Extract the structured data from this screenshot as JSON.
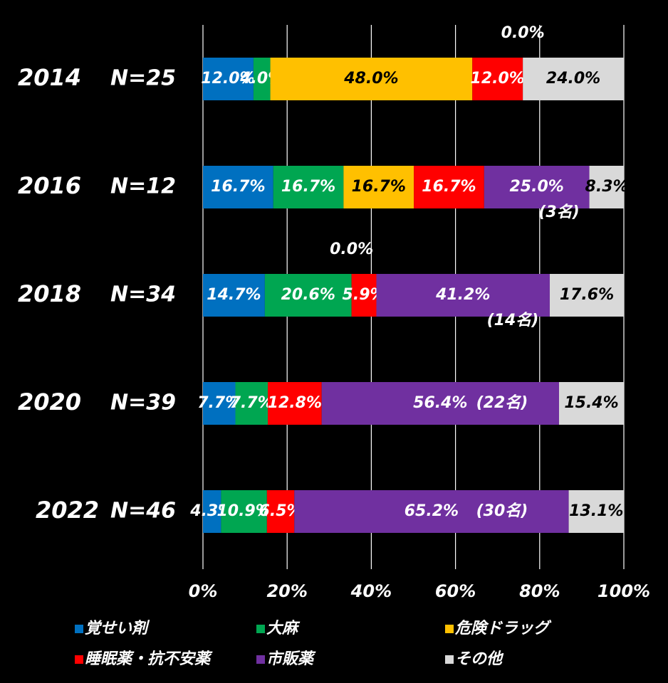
{
  "chart_data": {
    "type": "stacked_barh",
    "categories": [
      "2014",
      "2016",
      "2018",
      "2020",
      "2022"
    ],
    "n_labels": [
      "N=25",
      "N=12",
      "N=34",
      "N=39",
      "N=46"
    ],
    "series": [
      {
        "name": "覚せい剤",
        "color": "#0070c0",
        "values": [
          12.0,
          16.7,
          14.7,
          7.7,
          4.3
        ],
        "value_labels": [
          "12.0%",
          "16.7%",
          "14.7%",
          "7.7%",
          "4.3%"
        ]
      },
      {
        "name": "大麻",
        "color": "#00a651",
        "values": [
          4.0,
          16.7,
          20.6,
          7.7,
          10.9
        ],
        "value_labels": [
          "4.0%",
          "16.7%",
          "20.6%",
          "7.7%",
          "10.9%"
        ]
      },
      {
        "name": "危険ドラッグ",
        "color": "#ffc000",
        "values": [
          48.0,
          16.7,
          0.0,
          0,
          0
        ],
        "value_labels": [
          "48.0%",
          "16.7%",
          "0.0%",
          null,
          null
        ]
      },
      {
        "name": "睡眠薬・抗不安薬",
        "color": "#ff0000",
        "values": [
          12.0,
          16.7,
          5.9,
          12.8,
          6.5
        ],
        "value_labels": [
          "12.0%",
          "16.7%",
          "5.9%",
          "12.8%",
          "6.5%"
        ]
      },
      {
        "name": "市販薬",
        "color": "#7030a0",
        "values": [
          0.0,
          25.0,
          41.2,
          56.4,
          65.2
        ],
        "value_labels": [
          "0.0%",
          "25.0%",
          "41.2%",
          "56.4%",
          "65.2%"
        ]
      },
      {
        "name": "その他",
        "color": "#d9d9d9",
        "values": [
          24.0,
          8.3,
          17.6,
          15.4,
          13.1
        ],
        "value_labels": [
          "24.0%",
          "8.3%",
          "17.6%",
          "15.4%",
          "13.1%"
        ]
      }
    ],
    "annotations": [
      {
        "text": "(3名)",
        "category": 1
      },
      {
        "text": "(14名)",
        "category": 2
      },
      {
        "text": "(22名)",
        "category": 3
      },
      {
        "text": "(30名)",
        "category": 4
      }
    ],
    "xlim": [
      0,
      100
    ],
    "xticks": [
      {
        "value": 0,
        "label": "0%"
      },
      {
        "value": 20,
        "label": "20%"
      },
      {
        "value": 40,
        "label": "40%"
      },
      {
        "value": 60,
        "label": "60%"
      },
      {
        "value": 80,
        "label": "80%"
      },
      {
        "value": 100,
        "label": "100%"
      }
    ],
    "grid": true
  }
}
